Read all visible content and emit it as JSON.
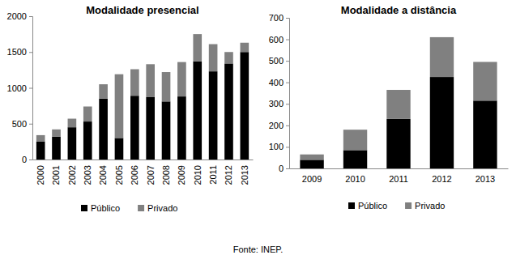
{
  "chart_data": [
    {
      "type": "bar",
      "title": "Modalidade presencial",
      "stacked": true,
      "legend": "bottom",
      "grid": false,
      "categories": [
        "2000",
        "2001",
        "2002",
        "2003",
        "2004",
        "2005",
        "2006",
        "2007",
        "2008",
        "2009",
        "2010",
        "2011",
        "2012",
        "2013"
      ],
      "series": [
        {
          "name": "Público",
          "color": "#000000",
          "values": [
            250,
            320,
            450,
            530,
            850,
            300,
            890,
            870,
            810,
            880,
            1370,
            1230,
            1340,
            1500
          ]
        },
        {
          "name": "Privado",
          "color": "#808080",
          "values": [
            90,
            100,
            120,
            210,
            200,
            890,
            370,
            460,
            410,
            480,
            380,
            380,
            160,
            130
          ]
        }
      ],
      "ylim": [
        0,
        2000
      ],
      "yticks": [
        0,
        500,
        1000,
        1500,
        2000
      ]
    },
    {
      "type": "bar",
      "title": "Modalidade a distância",
      "stacked": true,
      "legend": "bottom",
      "grid": false,
      "categories": [
        "2009",
        "2010",
        "2011",
        "2012",
        "2013"
      ],
      "series": [
        {
          "name": "Público",
          "color": "#000000",
          "values": [
            40,
            85,
            230,
            425,
            315
          ]
        },
        {
          "name": "Privado",
          "color": "#808080",
          "values": [
            25,
            95,
            135,
            185,
            180
          ]
        }
      ],
      "ylim": [
        0,
        700
      ],
      "yticks": [
        0,
        100,
        200,
        300,
        400,
        500,
        600,
        700
      ]
    }
  ],
  "caption": "Fonte: INEP."
}
